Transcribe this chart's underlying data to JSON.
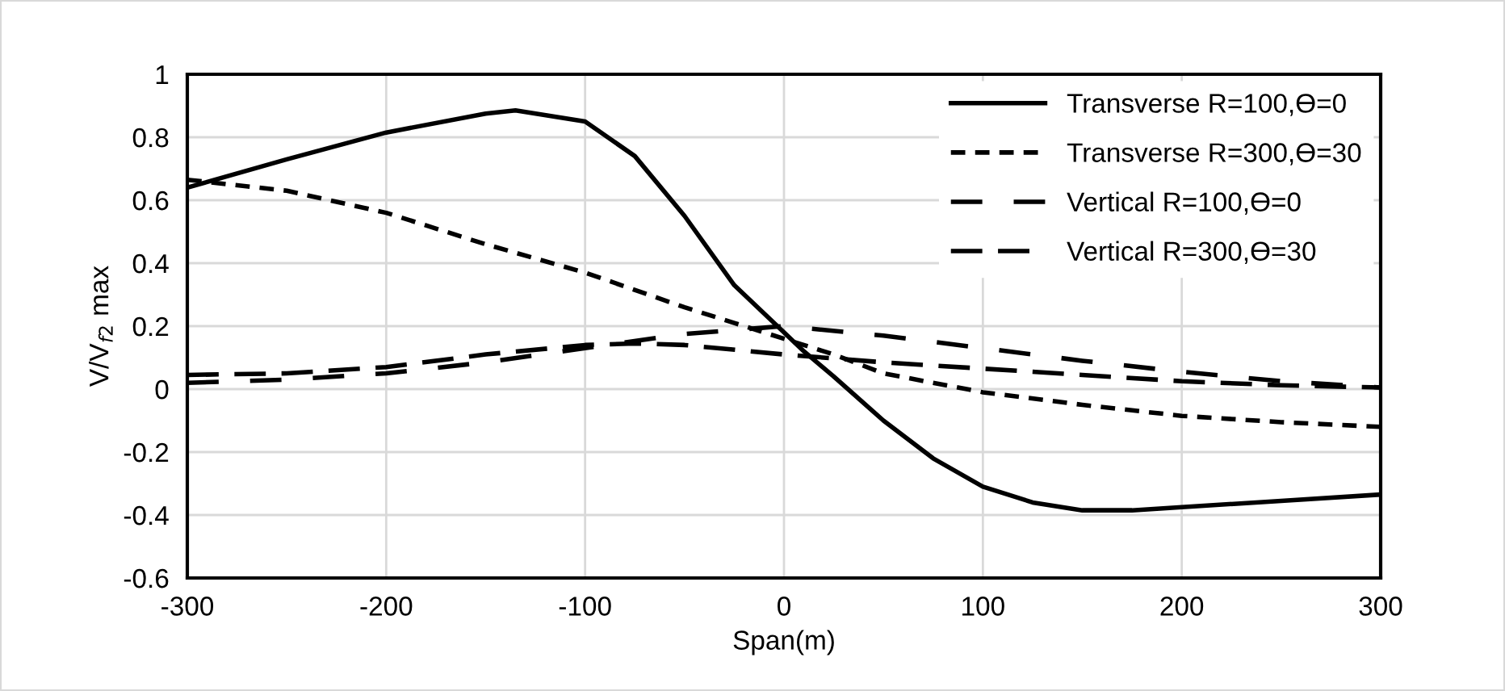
{
  "chart_data": {
    "type": "line",
    "xlabel": "Span(m)",
    "ylabel": "V/V$_{f2}$ max",
    "xlim": [
      -300,
      300
    ],
    "xticks": [
      -300,
      -200,
      -100,
      0,
      100,
      200,
      300
    ],
    "ylim": [
      -0.6,
      1
    ],
    "yticks": [
      -0.6,
      -0.4,
      -0.2,
      0,
      0.2,
      0.4,
      0.6,
      0.8,
      1
    ],
    "grid": true,
    "legend": "top right",
    "marker": "none",
    "series": [
      {
        "name": "Transverse R=100,Ө=0",
        "color": "#000000",
        "line_style": "solid",
        "x": [
          -300,
          -250,
          -200,
          -150,
          -135,
          -100,
          -75,
          -50,
          -25,
          0,
          10,
          25,
          50,
          75,
          100,
          125,
          150,
          175,
          200,
          250,
          300
        ],
        "values": [
          0.64,
          0.73,
          0.815,
          0.875,
          0.885,
          0.85,
          0.74,
          0.55,
          0.33,
          0.18,
          0.12,
          0.04,
          -0.1,
          -0.22,
          -0.31,
          -0.36,
          -0.385,
          -0.385,
          -0.375,
          -0.355,
          -0.335
        ]
      },
      {
        "name": "Transverse R=300,Ө=30",
        "color": "#000000",
        "line_style": "dashed",
        "x": [
          -300,
          -250,
          -200,
          -150,
          -100,
          -50,
          -25,
          0,
          25,
          50,
          100,
          150,
          200,
          250,
          300
        ],
        "values": [
          0.665,
          0.63,
          0.56,
          0.46,
          0.37,
          0.26,
          0.21,
          0.16,
          0.11,
          0.05,
          -0.01,
          -0.05,
          -0.085,
          -0.105,
          -0.12
        ]
      },
      {
        "name": "Vertical R=100,Ө=0",
        "color": "#000000",
        "line_style": "dashed",
        "x": [
          -300,
          -250,
          -200,
          -150,
          -100,
          -50,
          0,
          50,
          100,
          150,
          200,
          250,
          300
        ],
        "values": [
          0.02,
          0.03,
          0.05,
          0.085,
          0.13,
          0.175,
          0.2,
          0.17,
          0.13,
          0.09,
          0.055,
          0.025,
          0.005
        ]
      },
      {
        "name": "Vertical R=300,Ө=30",
        "color": "#000000",
        "line_style": "dashed",
        "x": [
          -300,
          -250,
          -200,
          -150,
          -100,
          -75,
          -50,
          0,
          50,
          100,
          150,
          200,
          250,
          300
        ],
        "values": [
          0.045,
          0.05,
          0.07,
          0.11,
          0.14,
          0.145,
          0.14,
          0.11,
          0.085,
          0.065,
          0.045,
          0.025,
          0.012,
          0.005
        ]
      }
    ]
  }
}
